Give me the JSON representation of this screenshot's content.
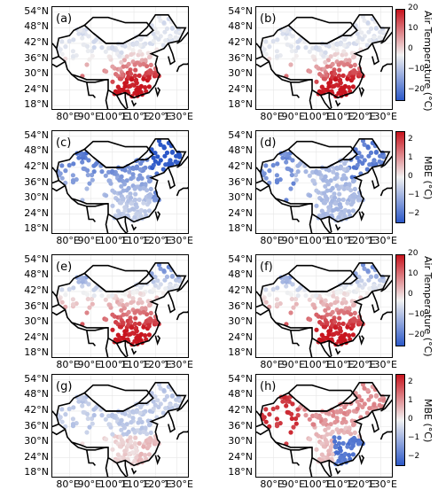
{
  "lat_ticks": [
    "54°N",
    "48°N",
    "42°N",
    "36°N",
    "30°N",
    "24°N",
    "18°N"
  ],
  "lon_ticks": [
    "80°E",
    "90°E",
    "100°E",
    "110°E",
    "120°E",
    "130°E"
  ],
  "panels": [
    {
      "letter": "(a)",
      "variable": "air_temperature",
      "pattern": "north_cool_south_warm"
    },
    {
      "letter": "(b)",
      "variable": "air_temperature",
      "pattern": "north_cool_south_warm"
    },
    {
      "letter": "(c)",
      "variable": "mbe",
      "pattern": "mostly_negative"
    },
    {
      "letter": "(d)",
      "variable": "mbe",
      "pattern": "strong_negative_northeast"
    },
    {
      "letter": "(e)",
      "variable": "air_temperature",
      "pattern": "warm_southeast"
    },
    {
      "letter": "(f)",
      "variable": "air_temperature",
      "pattern": "warm_southeast"
    },
    {
      "letter": "(g)",
      "variable": "mbe",
      "pattern": "weak_mixed"
    },
    {
      "letter": "(h)",
      "variable": "mbe",
      "pattern": "positive_west_negative_southeast"
    }
  ],
  "colorbars": [
    {
      "title": "Air Temperature (°C)",
      "ticks": [
        "20",
        "10",
        "0",
        "−10",
        "−20"
      ],
      "min": -25,
      "max": 20
    },
    {
      "title": "MBE (°C)",
      "ticks": [
        "2",
        "1",
        "0",
        "−1",
        "−2"
      ],
      "min": -2.5,
      "max": 2.5
    },
    {
      "title": "Air Temperature (°C)",
      "ticks": [
        "20",
        "10",
        "0",
        "−10",
        "−20"
      ],
      "min": -25,
      "max": 20
    },
    {
      "title": "MBE (°C)",
      "ticks": [
        "2",
        "1",
        "0",
        "−1",
        "−2"
      ],
      "min": -2.5,
      "max": 2.5
    }
  ],
  "colormap": {
    "low": "#2c58c8",
    "mid": "#f2f2f2",
    "high": "#c8141e"
  }
}
